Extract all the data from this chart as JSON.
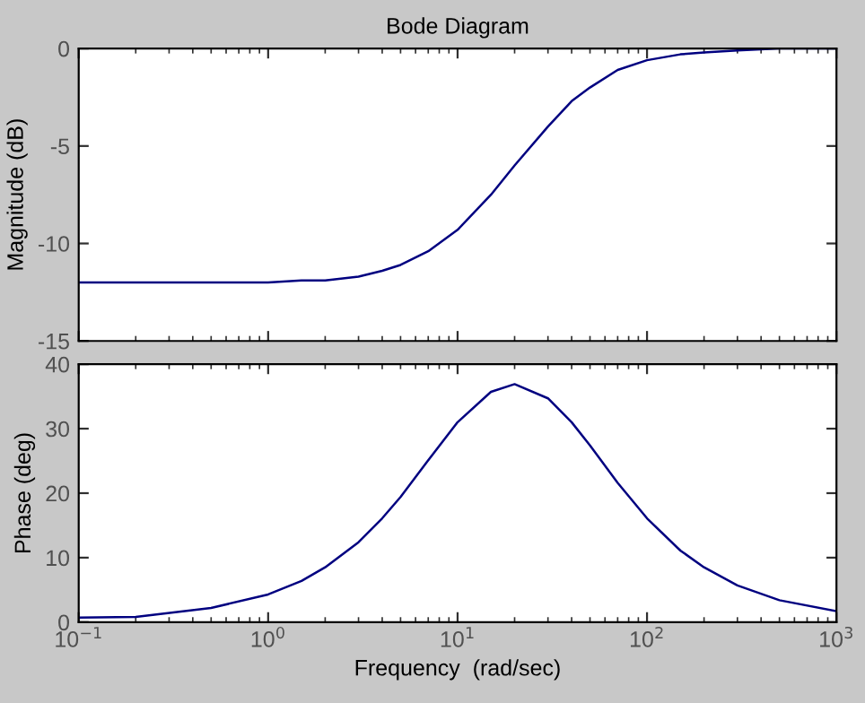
{
  "chart_data": [
    {
      "type": "line",
      "title": "Bode Diagram",
      "ylabel": "Magnitude (dB)",
      "log": "x",
      "tick_labels": "y",
      "grid": false,
      "x": [
        0.1,
        0.2,
        0.5,
        1,
        1.5,
        2,
        3,
        4,
        5,
        7,
        10,
        15,
        20,
        30,
        40,
        50,
        70,
        100,
        150,
        200,
        300,
        500,
        1000
      ],
      "series": [
        {
          "color": "#000080",
          "values": [
            -12.0,
            -12.0,
            -12.0,
            -12.0,
            -11.9,
            -11.9,
            -11.7,
            -11.4,
            -11.1,
            -10.4,
            -9.3,
            -7.5,
            -6.0,
            -4.0,
            -2.7,
            -2.0,
            -1.1,
            -0.6,
            -0.3,
            -0.2,
            -0.1,
            0.0,
            0.0
          ]
        }
      ],
      "xlim": [
        0.1,
        1000
      ],
      "xticks": [
        {
          "value": 0.1,
          "label": null
        },
        {
          "value": 1,
          "label": null
        },
        {
          "value": 10,
          "label": null
        },
        {
          "value": 100,
          "label": null
        },
        {
          "value": 1000,
          "label": null
        }
      ],
      "ylim": [
        -15,
        0
      ],
      "yticks": [
        -15,
        -10,
        -5,
        0
      ]
    },
    {
      "type": "line",
      "xlabel": "Frequency  (rad/sec)",
      "ylabel": "Phase (deg)",
      "log": "x",
      "grid": false,
      "x": [
        0.1,
        0.2,
        0.5,
        1,
        1.5,
        2,
        3,
        4,
        5,
        7,
        10,
        15,
        20,
        30,
        40,
        50,
        70,
        100,
        150,
        200,
        300,
        500,
        1000
      ],
      "series": [
        {
          "color": "#000080",
          "values": [
            0.7,
            0.8,
            2.2,
            4.3,
            6.4,
            8.5,
            12.4,
            16.1,
            19.4,
            25.1,
            31.0,
            35.7,
            36.9,
            34.7,
            31.0,
            27.4,
            21.6,
            16.1,
            11.1,
            8.5,
            5.7,
            3.4,
            1.7
          ]
        }
      ],
      "xlim": [
        0.1,
        1000
      ],
      "xticks": [
        {
          "value": 0.1,
          "label": "10$^{−1}$"
        },
        {
          "value": 1,
          "label": "10$^{0}$"
        },
        {
          "value": 10,
          "label": "10$^{1}$"
        },
        {
          "value": 100,
          "label": "10$^{2}$"
        },
        {
          "value": 1000,
          "label": "10$^{3}$"
        }
      ],
      "ylim": [
        0,
        40
      ],
      "yticks": [
        0,
        10,
        20,
        30,
        40
      ]
    }
  ]
}
